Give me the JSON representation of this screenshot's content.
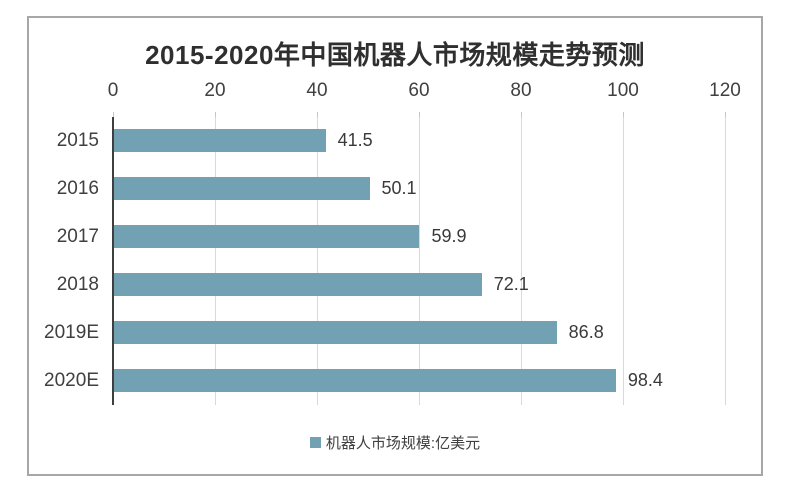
{
  "chart_data": {
    "type": "bar",
    "orientation": "horizontal",
    "title": "2015-2020年中国机器人市场规模走势预测",
    "categories": [
      "2015",
      "2016",
      "2017",
      "2018",
      "2019E",
      "2020E"
    ],
    "values": [
      41.5,
      50.1,
      59.9,
      72.1,
      86.8,
      98.4
    ],
    "data_labels": [
      "41.5",
      "50.1",
      "59.9",
      "72.1",
      "86.8",
      "98.4"
    ],
    "series_name": "机器人市场规模:亿美元",
    "xlim": [
      0,
      120
    ],
    "x_ticks": [
      0,
      20,
      40,
      60,
      80,
      100,
      120
    ],
    "x_tick_labels": [
      "0",
      "20",
      "40",
      "60",
      "80",
      "100",
      "120"
    ],
    "grid": true,
    "legend_position": "bottom",
    "colors": {
      "bar": "#72A1B4",
      "axis": "#3f3f3f",
      "gridline": "#d9d9d9",
      "tick": "#c6c6c6",
      "title_text": "#2f2f2f",
      "text": "#404040",
      "frame_border": "#a7a7a7",
      "background": "#ffffff"
    }
  }
}
